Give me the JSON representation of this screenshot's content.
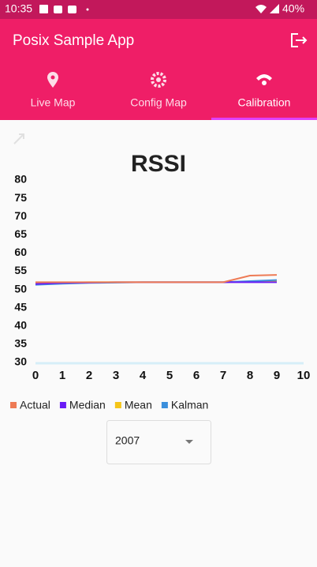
{
  "status_bar": {
    "time": "10:35",
    "battery": "40%"
  },
  "app_bar": {
    "title": "Posix Sample App"
  },
  "tabs": [
    "Live Map",
    "Config Map",
    "Calibration"
  ],
  "chart_data": {
    "type": "line",
    "title": "RSSI",
    "x": [
      0,
      1,
      2,
      3,
      4,
      5,
      6,
      7,
      8,
      9
    ],
    "series": [
      {
        "name": "Actual",
        "color": "#ee7b55",
        "values": [
          52,
          52,
          52,
          52,
          52,
          52,
          52,
          52,
          53.8,
          54
        ]
      },
      {
        "name": "Median",
        "color": "#6a1cf6",
        "values": [
          51.5,
          51.8,
          51.9,
          52,
          52,
          52,
          52,
          52,
          52,
          52
        ]
      },
      {
        "name": "Mean",
        "color": "#f5c518",
        "values": [
          51.8,
          51.9,
          52,
          52,
          52,
          52,
          52,
          52,
          52.2,
          52.4
        ]
      },
      {
        "name": "Kalman",
        "color": "#3a8fdc",
        "values": [
          51.3,
          51.6,
          51.8,
          51.9,
          52,
          52,
          52,
          52,
          52.3,
          52.6
        ]
      }
    ],
    "xlim": [
      0,
      10
    ],
    "xticks": [
      0,
      1,
      2,
      3,
      4,
      5,
      6,
      7,
      8,
      9,
      10
    ],
    "ylim": [
      30,
      80
    ],
    "yticks": [
      30,
      35,
      40,
      45,
      50,
      55,
      60,
      65,
      70,
      75,
      80
    ]
  },
  "dropdown": {
    "value": "2007"
  }
}
